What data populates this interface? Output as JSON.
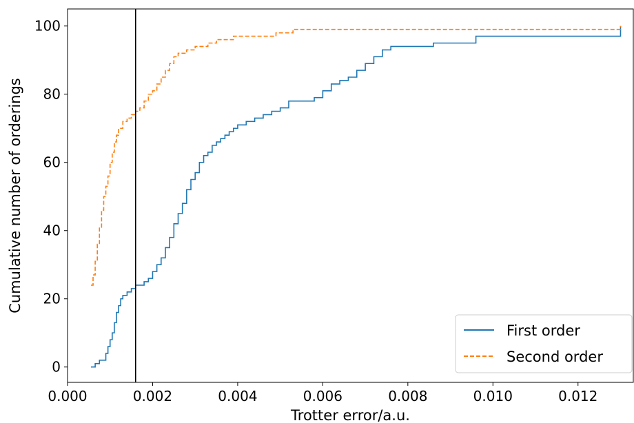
{
  "chart_data": {
    "type": "line",
    "step": true,
    "xlabel": "Trotter error/a.u.",
    "ylabel": "Cumulative number of orderings",
    "xlim": [
      -0.0,
      0.0133
    ],
    "ylim": [
      -4.5,
      105
    ],
    "xticks": [
      0.0,
      0.002,
      0.004,
      0.006,
      0.008,
      0.01,
      0.012
    ],
    "xtick_labels": [
      "0.000",
      "0.002",
      "0.004",
      "0.006",
      "0.008",
      "0.010",
      "0.012"
    ],
    "yticks": [
      0,
      20,
      40,
      60,
      80,
      100
    ],
    "ytick_labels": [
      "0",
      "20",
      "40",
      "60",
      "80",
      "100"
    ],
    "grid": false,
    "legend_position": "lower-right",
    "vertical_line": {
      "x": 0.0016,
      "color": "#000000"
    },
    "series": [
      {
        "name": "First order",
        "color": "#1f77b4",
        "style": "solid",
        "x": [
          0.00055,
          0.00065,
          0.00075,
          0.0009,
          0.00095,
          0.001,
          0.00105,
          0.0011,
          0.00115,
          0.0012,
          0.00125,
          0.0013,
          0.0014,
          0.0015,
          0.0016,
          0.0017,
          0.0018,
          0.0019,
          0.002,
          0.0021,
          0.0022,
          0.0023,
          0.0024,
          0.0025,
          0.0026,
          0.0027,
          0.0028,
          0.0029,
          0.003,
          0.0031,
          0.0032,
          0.0033,
          0.0034,
          0.0035,
          0.0036,
          0.0037,
          0.0038,
          0.0039,
          0.004,
          0.0042,
          0.0044,
          0.0046,
          0.0048,
          0.005,
          0.0052,
          0.0058,
          0.006,
          0.0062,
          0.0064,
          0.0066,
          0.0068,
          0.007,
          0.0072,
          0.0074,
          0.0076,
          0.0086,
          0.0096,
          0.013
        ],
        "y": [
          0,
          1,
          2,
          4,
          6,
          8,
          10,
          13,
          16,
          18,
          20,
          21,
          22,
          23,
          24,
          24,
          25,
          26,
          28,
          30,
          32,
          35,
          38,
          42,
          45,
          48,
          52,
          55,
          57,
          60,
          62,
          63,
          65,
          66,
          67,
          68,
          69,
          70,
          71,
          72,
          73,
          74,
          75,
          76,
          78,
          79,
          81,
          83,
          84,
          85,
          87,
          89,
          91,
          93,
          94,
          95,
          97,
          100
        ]
      },
      {
        "name": "Second order",
        "color": "#ff7f0e",
        "style": "dashed",
        "x": [
          0.00055,
          0.0006,
          0.00065,
          0.0007,
          0.00075,
          0.0008,
          0.00085,
          0.0009,
          0.00095,
          0.001,
          0.00105,
          0.0011,
          0.00115,
          0.0012,
          0.0013,
          0.0014,
          0.0015,
          0.0016,
          0.0017,
          0.0018,
          0.0019,
          0.002,
          0.0021,
          0.0022,
          0.0023,
          0.0024,
          0.0025,
          0.0026,
          0.0027,
          0.0028,
          0.0029,
          0.003,
          0.0031,
          0.0032,
          0.0033,
          0.0034,
          0.0035,
          0.0037,
          0.0039,
          0.0041,
          0.0045,
          0.0049,
          0.0053,
          0.013
        ],
        "y": [
          24,
          27,
          31,
          36,
          41,
          46,
          50,
          53,
          56,
          60,
          63,
          66,
          68,
          70,
          72,
          73,
          74,
          75,
          76,
          78,
          80,
          81,
          83,
          85,
          87,
          89,
          91,
          92,
          92,
          93,
          93,
          94,
          94,
          94,
          95,
          95,
          96,
          96,
          97,
          97,
          97,
          98,
          99,
          100
        ]
      }
    ]
  }
}
